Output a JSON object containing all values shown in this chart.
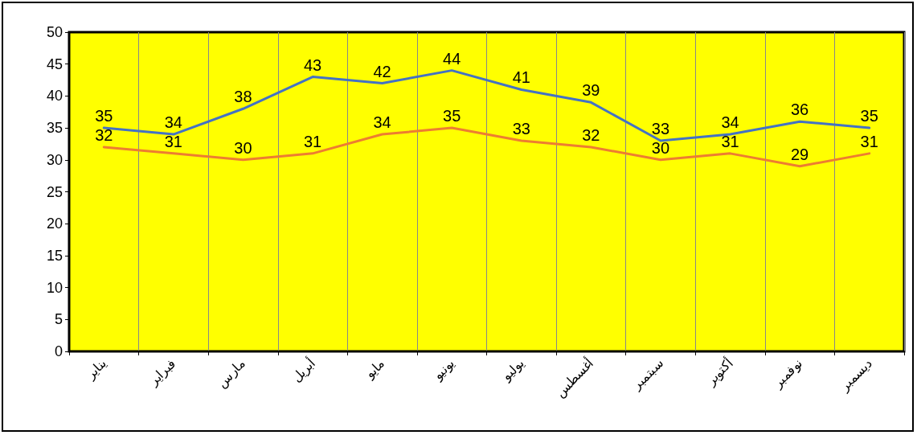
{
  "chart_data": {
    "type": "line",
    "categories": [
      "يناير",
      "فبراير",
      "مارس",
      "أبريل",
      "مايو",
      "يونيو",
      "يوليو",
      "أغسطس",
      "سبتمبر",
      "أكتوبر",
      "نوفمبر",
      "ديسمبر"
    ],
    "series": [
      {
        "color": "#4472c4",
        "values": [
          35,
          34,
          38,
          43,
          42,
          44,
          41,
          39,
          33,
          34,
          36,
          35
        ]
      },
      {
        "color": "#ed7d31",
        "values": [
          32,
          31,
          30,
          31,
          34,
          35,
          33,
          32,
          30,
          31,
          29,
          31
        ]
      }
    ],
    "ylim": [
      0,
      50
    ],
    "yticks": [
      0,
      5,
      10,
      15,
      20,
      25,
      30,
      35,
      40,
      45,
      50
    ],
    "grid": "x",
    "data_labels": true,
    "marker": "none",
    "line_style": "solid"
  }
}
